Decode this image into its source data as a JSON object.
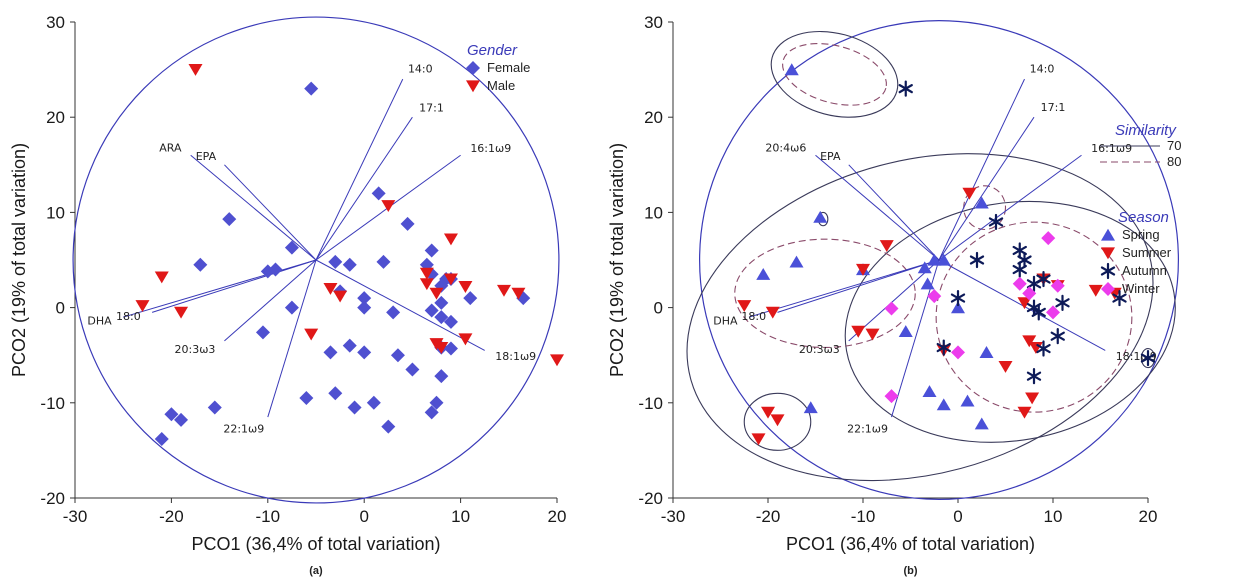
{
  "chart_data": [
    {
      "panel": "a",
      "type": "scatter",
      "caption": "(a)",
      "xlabel": "PCO1 (36,4% of total variation)",
      "ylabel": "PCO2 (19% of total variation)",
      "xlim": [
        -30,
        20
      ],
      "ylim": [
        -20,
        30
      ],
      "xticks": [
        -30,
        -20,
        -10,
        0,
        10,
        20
      ],
      "yticks": [
        -20,
        -10,
        0,
        10,
        20,
        30
      ],
      "grid": false,
      "legend": {
        "title": "Gender",
        "position": "top-right"
      },
      "correlation_circle": {
        "center": [
          -5,
          5
        ],
        "radius": 25.2,
        "color": "#3a3ab8"
      },
      "vectors": [
        {
          "label": "14:0",
          "end": [
            4.0,
            24.0
          ]
        },
        {
          "label": "17:1",
          "end": [
            5.0,
            20.0
          ]
        },
        {
          "label": "16:1ω9",
          "end": [
            10.0,
            16.0
          ]
        },
        {
          "label": "ARA",
          "end": [
            -18.0,
            16.0
          ]
        },
        {
          "label": "EPA",
          "end": [
            -14.5,
            15.0
          ]
        },
        {
          "label": "DHA",
          "end": [
            -25.0,
            -1.0
          ]
        },
        {
          "label": "18:0",
          "end": [
            -22.0,
            -0.5
          ]
        },
        {
          "label": "20:3ω3",
          "end": [
            -14.5,
            -3.5
          ]
        },
        {
          "label": "22:1ω9",
          "end": [
            -10.0,
            -11.5
          ]
        },
        {
          "label": "18:1ω9",
          "end": [
            12.5,
            -4.5
          ]
        }
      ],
      "series": [
        {
          "name": "Female",
          "marker": "diamond",
          "color": "#4f50d0",
          "points": [
            [
              -5.5,
              23
            ],
            [
              -14,
              9.3
            ],
            [
              -7.5,
              6.3
            ],
            [
              -17,
              4.5
            ],
            [
              -10,
              3.8
            ],
            [
              -9.2,
              4.0
            ],
            [
              -10.5,
              -2.6
            ],
            [
              -7.5,
              0
            ],
            [
              -3,
              4.8
            ],
            [
              -1.5,
              4.5
            ],
            [
              -2.5,
              1.7
            ],
            [
              0,
              1
            ],
            [
              1.5,
              12
            ],
            [
              4.5,
              8.8
            ],
            [
              2,
              4.8
            ],
            [
              0,
              0
            ],
            [
              7,
              6
            ],
            [
              6.5,
              4.5
            ],
            [
              8.5,
              3
            ],
            [
              7,
              3.5
            ],
            [
              8,
              2.3
            ],
            [
              9,
              3
            ],
            [
              11,
              1
            ],
            [
              16.5,
              1
            ],
            [
              8,
              0.5
            ],
            [
              7,
              -0.3
            ],
            [
              8,
              -1
            ],
            [
              9,
              -1.5
            ],
            [
              3,
              -0.5
            ],
            [
              -3.5,
              -4.7
            ],
            [
              -1.5,
              -4
            ],
            [
              0,
              -4.7
            ],
            [
              3.5,
              -5
            ],
            [
              5,
              -6.5
            ],
            [
              -6,
              -9.5
            ],
            [
              -3,
              -9
            ],
            [
              -1,
              -10.5
            ],
            [
              1,
              -10
            ],
            [
              2.5,
              -12.5
            ],
            [
              7.5,
              -10
            ],
            [
              7,
              -11
            ],
            [
              8,
              -7.2
            ],
            [
              8,
              -4.2
            ],
            [
              9,
              -4.3
            ],
            [
              -15.5,
              -10.5
            ],
            [
              -20,
              -11.2
            ],
            [
              -19,
              -11.8
            ],
            [
              -21,
              -13.8
            ]
          ]
        },
        {
          "name": "Male",
          "marker": "triangle-down",
          "color": "#e01818",
          "points": [
            [
              -17.5,
              25
            ],
            [
              -21,
              3.2
            ],
            [
              -23,
              0.2
            ],
            [
              -19,
              -0.5
            ],
            [
              -3.5,
              2
            ],
            [
              -2.5,
              1.2
            ],
            [
              -5.5,
              -2.8
            ],
            [
              2.5,
              10.7
            ],
            [
              6.5,
              3.6
            ],
            [
              6.5,
              2.5
            ],
            [
              7.5,
              1.5
            ],
            [
              9,
              7.2
            ],
            [
              9,
              3
            ],
            [
              10.5,
              2.2
            ],
            [
              10.5,
              -3.3
            ],
            [
              7.5,
              -3.8
            ],
            [
              8,
              -4.2
            ],
            [
              14.5,
              1.8
            ],
            [
              16,
              1.5
            ],
            [
              20,
              -5.5
            ]
          ]
        }
      ]
    },
    {
      "panel": "b",
      "type": "scatter",
      "caption": "(b)",
      "xlabel": "PCO1 (36,4% of total variation)",
      "ylabel": "PCO2 (19% of total variation)",
      "xlim": [
        -30,
        20
      ],
      "ylim": [
        -20,
        30
      ],
      "xticks": [
        -30,
        -20,
        -10,
        0,
        10,
        20
      ],
      "yticks": [
        -20,
        -10,
        0,
        10,
        20,
        30
      ],
      "grid": false,
      "legend_similarity": {
        "title": "Similarity",
        "position": "top-right",
        "entries": [
          {
            "label": "70",
            "style": "solid",
            "color": "#3a3a5a"
          },
          {
            "label": "80",
            "style": "dashed",
            "color": "#8a4a6a"
          }
        ]
      },
      "legend": {
        "title": "Season",
        "position": "right"
      },
      "correlation_circle": {
        "center": [
          -2,
          5
        ],
        "radius": 25.2,
        "color": "#3a3ab8"
      },
      "vectors": [
        {
          "label": "14:0",
          "end": [
            7.0,
            24.0
          ]
        },
        {
          "label": "17:1",
          "end": [
            8.0,
            20.0
          ]
        },
        {
          "label": "16:1ω9",
          "end": [
            13.0,
            16.0
          ]
        },
        {
          "label": "20:4ω6",
          "end": [
            -15.0,
            16.0
          ]
        },
        {
          "label": "EPA",
          "end": [
            -11.5,
            15.0
          ]
        },
        {
          "label": "DHA",
          "end": [
            -22.0,
            -1.0
          ]
        },
        {
          "label": "18:0",
          "end": [
            -19.0,
            -0.5
          ]
        },
        {
          "label": "20:3ω3",
          "end": [
            -11.5,
            -3.5
          ]
        },
        {
          "label": "22:1ω9",
          "end": [
            -7.0,
            -11.5
          ]
        },
        {
          "label": "18:1ω9",
          "end": [
            15.5,
            -4.5
          ]
        }
      ],
      "similarity_ellipses": [
        {
          "level": "70",
          "cx": -13,
          "cy": 24.5,
          "rx": 6.8,
          "ry": 4.3,
          "rot": -15
        },
        {
          "level": "80",
          "cx": -13,
          "cy": 24.5,
          "rx": 5.6,
          "ry": 3.0,
          "rot": -15
        },
        {
          "level": "70",
          "cx": -4,
          "cy": -1,
          "rx": 25,
          "ry": 16.5,
          "rot": 15
        },
        {
          "level": "70",
          "cx": 5.5,
          "cy": -1.5,
          "rx": 17.5,
          "ry": 12.5,
          "rot": 10
        },
        {
          "level": "80",
          "cx": -14,
          "cy": 1.5,
          "rx": 9.5,
          "ry": 5.7,
          "rot": 0
        },
        {
          "level": "80",
          "cx": 8,
          "cy": -1,
          "rx": 10.3,
          "ry": 10,
          "rot": 0
        },
        {
          "level": "80",
          "cx": 2.8,
          "cy": 10.5,
          "rx": 2.2,
          "ry": 2.3,
          "rot": 0
        },
        {
          "level": "70",
          "cx": -19,
          "cy": -12,
          "rx": 3.5,
          "ry": 3.0,
          "rot": 0
        },
        {
          "level": "70",
          "cx": 20,
          "cy": -5.3,
          "rx": 0.7,
          "ry": 1.0,
          "rot": 0
        },
        {
          "level": "70",
          "cx": -14.2,
          "cy": 9.3,
          "rx": 0.5,
          "ry": 0.7,
          "rot": 0
        }
      ],
      "series": [
        {
          "name": "Spring",
          "marker": "triangle-up",
          "color": "#4a50d8",
          "points": [
            [
              -17.5,
              25
            ],
            [
              -14.5,
              9.5
            ],
            [
              -20.5,
              3.5
            ],
            [
              -17,
              4.8
            ],
            [
              -10,
              4.0
            ],
            [
              -3.5,
              4.2
            ],
            [
              -3.2,
              2.5
            ],
            [
              -2.5,
              5
            ],
            [
              -1.5,
              5
            ],
            [
              0,
              0
            ],
            [
              -5.5,
              -2.5
            ],
            [
              2.5,
              11
            ],
            [
              3,
              -4.7
            ],
            [
              -3,
              -8.8
            ],
            [
              -1.5,
              -10.2
            ],
            [
              1,
              -9.8
            ],
            [
              2.5,
              -12.2
            ],
            [
              -15.5,
              -10.5
            ]
          ]
        },
        {
          "name": "Summer",
          "marker": "triangle-down",
          "color": "#e01818",
          "points": [
            [
              -7.5,
              6.5
            ],
            [
              -10,
              4.0
            ],
            [
              -22.5,
              0.2
            ],
            [
              -19.5,
              -0.5
            ],
            [
              -10.5,
              -2.5
            ],
            [
              -9,
              -2.8
            ],
            [
              -1.5,
              -4.5
            ],
            [
              1.2,
              12
            ],
            [
              5,
              -6.2
            ],
            [
              7,
              0.5
            ],
            [
              7.5,
              -3.5
            ],
            [
              8.2,
              -4.2
            ],
            [
              7.8,
              -9.5
            ],
            [
              7,
              -11
            ],
            [
              9,
              3
            ],
            [
              10.5,
              2.3
            ],
            [
              14.5,
              1.8
            ],
            [
              16.5,
              1.5
            ],
            [
              -20,
              -11
            ],
            [
              -19,
              -11.8
            ],
            [
              -21,
              -13.8
            ]
          ]
        },
        {
          "name": "Autumn",
          "marker": "asterisk",
          "color": "#0d1a58",
          "points": [
            [
              -5.5,
              23
            ],
            [
              4,
              9
            ],
            [
              2,
              5
            ],
            [
              6.5,
              6
            ],
            [
              6.5,
              4
            ],
            [
              7,
              5
            ],
            [
              8,
              2.5
            ],
            [
              9,
              3
            ],
            [
              11,
              0.5
            ],
            [
              17,
              1
            ],
            [
              0,
              1
            ],
            [
              8,
              0
            ],
            [
              8.5,
              -0.5
            ],
            [
              10.5,
              -3
            ],
            [
              9,
              -4.3
            ],
            [
              8,
              -7.2
            ],
            [
              -1.5,
              -4.2
            ],
            [
              20,
              -5.3
            ]
          ]
        },
        {
          "name": "Winter",
          "marker": "diamond",
          "color": "#ec3cec",
          "points": [
            [
              9.5,
              7.3
            ],
            [
              6.5,
              2.5
            ],
            [
              7.5,
              1.5
            ],
            [
              10.5,
              2.3
            ],
            [
              -2.5,
              1.2
            ],
            [
              -7,
              -0.1
            ],
            [
              10,
              -0.5
            ],
            [
              0,
              -4.7
            ],
            [
              -7,
              -9.3
            ]
          ]
        }
      ]
    }
  ]
}
